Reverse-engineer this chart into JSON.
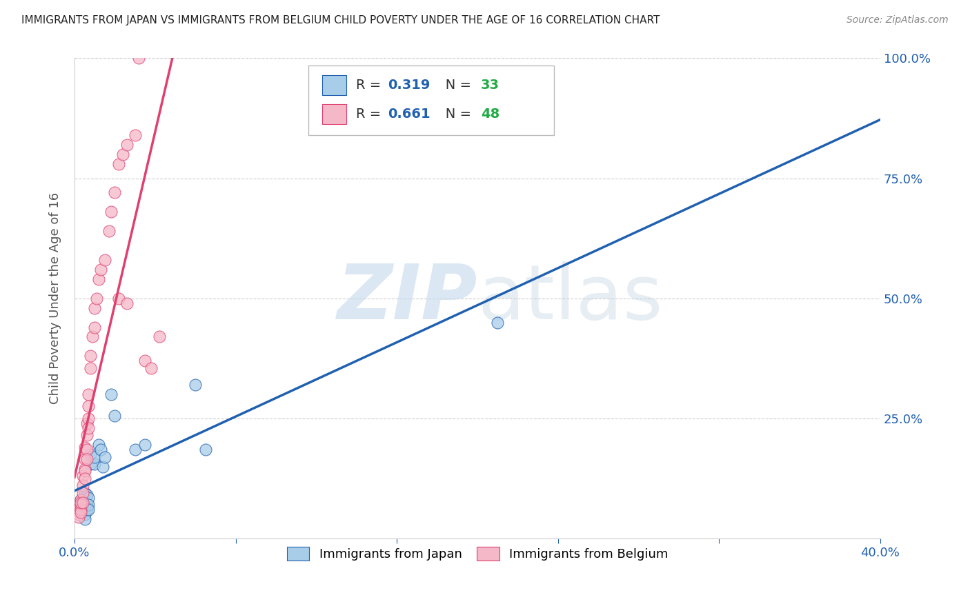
{
  "title": "IMMIGRANTS FROM JAPAN VS IMMIGRANTS FROM BELGIUM CHILD POVERTY UNDER THE AGE OF 16 CORRELATION CHART",
  "source": "Source: ZipAtlas.com",
  "ylabel_left": "Child Poverty Under the Age of 16",
  "x_min": 0.0,
  "x_max": 0.4,
  "y_min": 0.0,
  "y_max": 1.0,
  "japan_color": "#a8cde8",
  "belgium_color": "#f5b8c8",
  "japan_line_color": "#2060b0",
  "belgium_line_color": "#e04070",
  "japan_R": 0.319,
  "japan_N": 33,
  "belgium_R": 0.661,
  "belgium_N": 48,
  "background_color": "#ffffff",
  "grid_color": "#cccccc",
  "japan_scatter_x": [
    0.003,
    0.003,
    0.003,
    0.003,
    0.004,
    0.004,
    0.004,
    0.004,
    0.005,
    0.005,
    0.005,
    0.005,
    0.006,
    0.006,
    0.006,
    0.007,
    0.007,
    0.007,
    0.008,
    0.008,
    0.01,
    0.01,
    0.012,
    0.013,
    0.014,
    0.015,
    0.018,
    0.02,
    0.03,
    0.035,
    0.06,
    0.21,
    0.065
  ],
  "japan_scatter_y": [
    0.055,
    0.08,
    0.07,
    0.06,
    0.065,
    0.08,
    0.075,
    0.055,
    0.095,
    0.06,
    0.05,
    0.04,
    0.09,
    0.07,
    0.06,
    0.085,
    0.07,
    0.06,
    0.155,
    0.175,
    0.155,
    0.17,
    0.195,
    0.185,
    0.15,
    0.17,
    0.3,
    0.255,
    0.185,
    0.195,
    0.32,
    0.45,
    0.185
  ],
  "belgium_scatter_x": [
    0.002,
    0.002,
    0.002,
    0.002,
    0.003,
    0.003,
    0.003,
    0.003,
    0.003,
    0.004,
    0.004,
    0.004,
    0.004,
    0.005,
    0.005,
    0.005,
    0.005,
    0.005,
    0.006,
    0.006,
    0.006,
    0.006,
    0.007,
    0.007,
    0.007,
    0.007,
    0.008,
    0.008,
    0.009,
    0.01,
    0.01,
    0.011,
    0.012,
    0.013,
    0.015,
    0.017,
    0.018,
    0.02,
    0.022,
    0.024,
    0.026,
    0.03,
    0.032,
    0.035,
    0.038,
    0.042,
    0.022,
    0.026
  ],
  "belgium_scatter_y": [
    0.06,
    0.055,
    0.05,
    0.045,
    0.08,
    0.07,
    0.06,
    0.055,
    0.075,
    0.13,
    0.11,
    0.095,
    0.075,
    0.19,
    0.165,
    0.145,
    0.14,
    0.125,
    0.24,
    0.215,
    0.185,
    0.165,
    0.3,
    0.275,
    0.25,
    0.23,
    0.38,
    0.355,
    0.42,
    0.48,
    0.44,
    0.5,
    0.54,
    0.56,
    0.58,
    0.64,
    0.68,
    0.72,
    0.78,
    0.8,
    0.82,
    0.84,
    1.0,
    0.37,
    0.355,
    0.42,
    0.5,
    0.49
  ],
  "legend_R_color": "#2060b0",
  "legend_N_color": "#22aa44",
  "legend_text_color": "#333333",
  "title_color": "#222222",
  "source_color": "#888888",
  "ylabel_color": "#555555",
  "tick_label_color": "#2060b0"
}
